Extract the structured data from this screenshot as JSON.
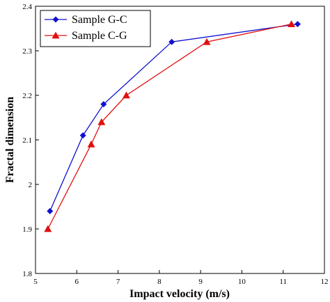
{
  "chart_data": {
    "type": "line",
    "title": "",
    "xlabel": "Impact velocity (m/s)",
    "ylabel": "Fractal dimension",
    "xlim": [
      5,
      12
    ],
    "ylim": [
      1.8,
      2.4
    ],
    "xticks": [
      5,
      6,
      7,
      8,
      9,
      10,
      11,
      12
    ],
    "yticks": [
      1.8,
      1.9,
      2.0,
      2.1,
      2.2,
      2.3,
      2.4
    ],
    "xtick_labels": [
      "5",
      "6",
      "7",
      "8",
      "9",
      "10",
      "11",
      "12"
    ],
    "ytick_labels": [
      "1.8",
      "1.9",
      "2",
      "2.1",
      "2.2",
      "2.3",
      "2.4"
    ],
    "grid": false,
    "legend_position": "top-left",
    "series": [
      {
        "name": "Sample G-C",
        "color": "#1010d0",
        "marker": "diamond",
        "x": [
          5.35,
          6.15,
          6.65,
          8.3,
          11.35
        ],
        "y": [
          1.94,
          2.11,
          2.18,
          2.32,
          2.36
        ]
      },
      {
        "name": "Sample C-G",
        "color": "#e01010",
        "marker": "triangle",
        "x": [
          5.3,
          6.35,
          6.6,
          7.2,
          9.15,
          11.2
        ],
        "y": [
          1.9,
          2.09,
          2.14,
          2.2,
          2.32,
          2.36
        ]
      }
    ]
  }
}
